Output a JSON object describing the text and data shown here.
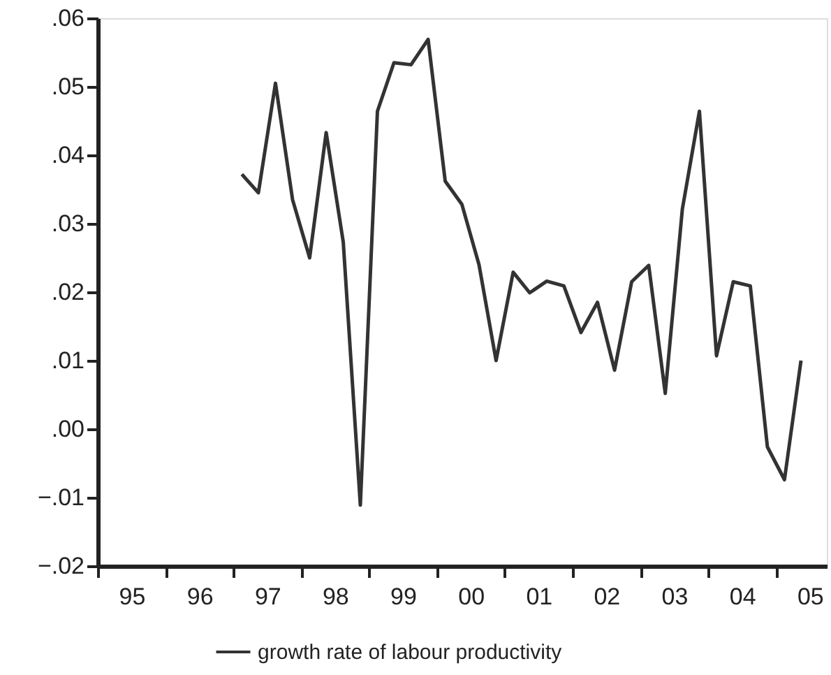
{
  "chart_data": {
    "type": "line",
    "x": [
      "1997-02-15",
      "1997-05-15",
      "1997-08-15",
      "1997-11-15",
      "1998-02-15",
      "1998-05-15",
      "1998-08-15",
      "1998-11-15",
      "1999-02-15",
      "1999-05-15",
      "1999-08-15",
      "1999-11-15",
      "2000-02-15",
      "2000-05-15",
      "2000-08-15",
      "2000-11-15",
      "2001-02-15",
      "2001-05-15",
      "2001-08-15",
      "2001-11-15",
      "2002-02-15",
      "2002-05-15",
      "2002-08-15",
      "2002-11-15",
      "2003-02-15",
      "2003-05-15",
      "2003-08-15",
      "2003-11-15",
      "2004-02-15",
      "2004-05-15",
      "2004-08-15",
      "2004-11-15",
      "2005-02-15",
      "2005-05-15"
    ],
    "series": [
      {
        "name": "growth rate of labour productivity",
        "color": "#333333",
        "values": [
          0.0372,
          0.0345,
          0.0505,
          0.0335,
          0.025,
          0.0433,
          0.0273,
          -0.0111,
          0.0464,
          0.0535,
          0.0532,
          0.0569,
          0.0362,
          0.0328,
          0.024,
          0.01,
          0.0229,
          0.0199,
          0.0216,
          0.0209,
          0.0141,
          0.0185,
          0.0086,
          0.0215,
          0.0239,
          0.0052,
          0.0321,
          0.0464,
          0.0107,
          0.0215,
          0.0209,
          -0.0026,
          -0.0074,
          0.01
        ]
      }
    ],
    "xlim": [
      "1995-01-01",
      "2005-10-01"
    ],
    "xticks": [
      {
        "value": "1995-01-01",
        "label": null
      },
      {
        "value": "1995-07-02",
        "label": "95"
      },
      {
        "value": "1996-01-01",
        "label": null
      },
      {
        "value": "1996-07-02",
        "label": "96"
      },
      {
        "value": "1997-01-01",
        "label": null
      },
      {
        "value": "1997-07-02",
        "label": "97"
      },
      {
        "value": "1998-01-01",
        "label": null
      },
      {
        "value": "1998-07-02",
        "label": "98"
      },
      {
        "value": "1999-01-01",
        "label": null
      },
      {
        "value": "1999-07-02",
        "label": "99"
      },
      {
        "value": "2000-01-01",
        "label": null
      },
      {
        "value": "2000-07-02",
        "label": "00"
      },
      {
        "value": "2001-01-01",
        "label": null
      },
      {
        "value": "2001-07-02",
        "label": "01"
      },
      {
        "value": "2002-01-01",
        "label": null
      },
      {
        "value": "2002-07-02",
        "label": "02"
      },
      {
        "value": "2003-01-01",
        "label": null
      },
      {
        "value": "2003-07-02",
        "label": "03"
      },
      {
        "value": "2004-01-01",
        "label": null
      },
      {
        "value": "2004-07-02",
        "label": "04"
      },
      {
        "value": "2005-01-01",
        "label": null
      },
      {
        "value": "2005-07-02",
        "label": "05"
      }
    ],
    "ylim": [
      -0.02,
      0.06
    ],
    "yticks": [
      {
        "value": -0.02,
        "label": "−.02"
      },
      {
        "value": -0.01,
        "label": "−.01"
      },
      {
        "value": 0,
        "label": ".00"
      },
      {
        "value": 0.01,
        "label": ".01"
      },
      {
        "value": 0.02,
        "label": ".02"
      },
      {
        "value": 0.03,
        "label": ".03"
      },
      {
        "value": 0.04,
        "label": ".04"
      },
      {
        "value": 0.05,
        "label": ".05"
      },
      {
        "value": 0.06,
        "label": ".06"
      }
    ],
    "grid": false,
    "legend": "bottom",
    "line_style": "solid",
    "marker": "none"
  }
}
